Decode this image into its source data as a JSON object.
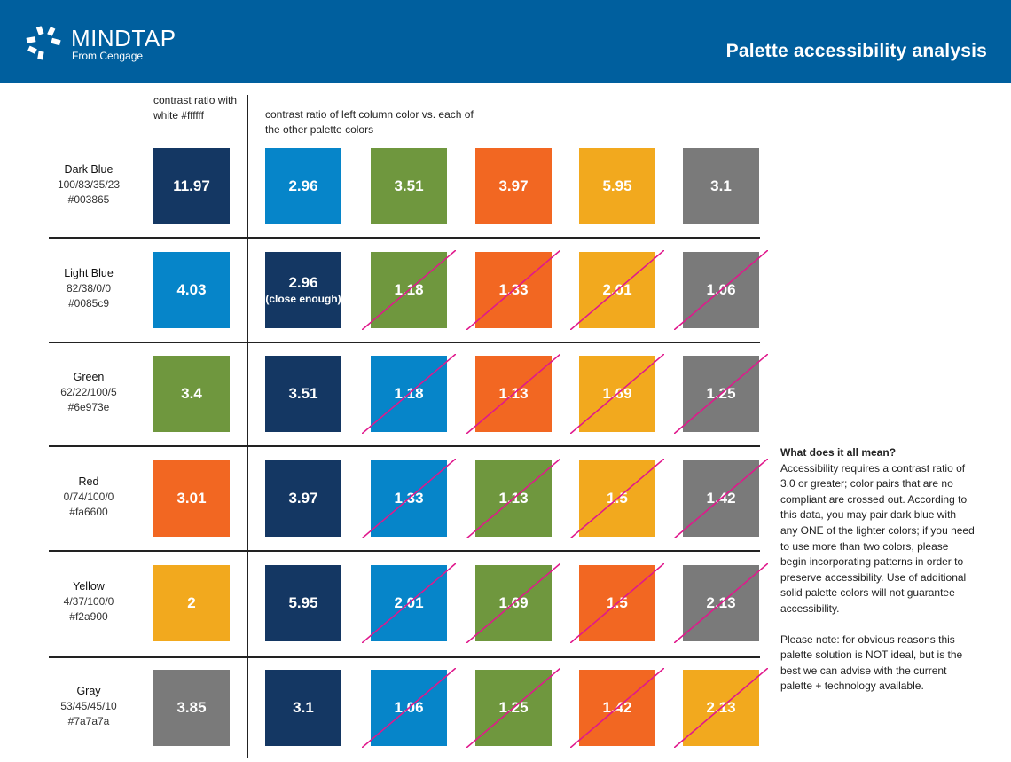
{
  "header": {
    "brand": "MINDTAP",
    "brand_sub": "From Cengage",
    "title": "Palette accessibility analysis",
    "color": "#005f9e"
  },
  "columns": {
    "white_head": "contrast ratio with white #ffffff",
    "others_head": "contrast ratio of left column color vs. each of the other palette colors"
  },
  "colors": {
    "dark_blue": "#143763",
    "light_blue": "#0685c9",
    "green": "#6f973e",
    "red": "#f26722",
    "yellow": "#f2a91e",
    "gray": "#7a7a7a",
    "cross": "#e0188c"
  },
  "rows": [
    {
      "name": "Dark Blue",
      "cmyk": "100/83/35/23",
      "hex": "#003865",
      "white": {
        "value": "11.97",
        "color": "dark_blue"
      },
      "cells": [
        {
          "value": "2.96",
          "color": "light_blue",
          "crossed": false
        },
        {
          "value": "3.51",
          "color": "green",
          "crossed": false
        },
        {
          "value": "3.97",
          "color": "red",
          "crossed": false
        },
        {
          "value": "5.95",
          "color": "yellow",
          "crossed": false
        },
        {
          "value": "3.1",
          "color": "gray",
          "crossed": false
        }
      ]
    },
    {
      "name": "Light Blue",
      "cmyk": "82/38/0/0",
      "hex": "#0085c9",
      "white": {
        "value": "4.03",
        "color": "light_blue"
      },
      "cells": [
        {
          "value": "2.96",
          "note": "(close enough)",
          "color": "dark_blue",
          "crossed": false
        },
        {
          "value": "1.18",
          "color": "green",
          "crossed": true
        },
        {
          "value": "1.33",
          "color": "red",
          "crossed": true
        },
        {
          "value": "2.01",
          "color": "yellow",
          "crossed": true
        },
        {
          "value": "1.06",
          "color": "gray",
          "crossed": true
        }
      ]
    },
    {
      "name": "Green",
      "cmyk": "62/22/100/5",
      "hex": "#6e973e",
      "white": {
        "value": "3.4",
        "color": "green"
      },
      "cells": [
        {
          "value": "3.51",
          "color": "dark_blue",
          "crossed": false
        },
        {
          "value": "1.18",
          "color": "light_blue",
          "crossed": true
        },
        {
          "value": "1.13",
          "color": "red",
          "crossed": true
        },
        {
          "value": "1.69",
          "color": "yellow",
          "crossed": true
        },
        {
          "value": "1.25",
          "color": "gray",
          "crossed": true
        }
      ]
    },
    {
      "name": "Red",
      "cmyk": "0/74/100/0",
      "hex": "#fa6600",
      "white": {
        "value": "3.01",
        "color": "red"
      },
      "cells": [
        {
          "value": "3.97",
          "color": "dark_blue",
          "crossed": false
        },
        {
          "value": "1.33",
          "color": "light_blue",
          "crossed": true
        },
        {
          "value": "1.13",
          "color": "green",
          "crossed": true
        },
        {
          "value": "1.5",
          "color": "yellow",
          "crossed": true
        },
        {
          "value": "1.42",
          "color": "gray",
          "crossed": true
        }
      ]
    },
    {
      "name": "Yellow",
      "cmyk": "4/37/100/0",
      "hex": "#f2a900",
      "white": {
        "value": "2",
        "color": "yellow"
      },
      "cells": [
        {
          "value": "5.95",
          "color": "dark_blue",
          "crossed": false
        },
        {
          "value": "2.01",
          "color": "light_blue",
          "crossed": true
        },
        {
          "value": "1.69",
          "color": "green",
          "crossed": true
        },
        {
          "value": "1.5",
          "color": "red",
          "crossed": true
        },
        {
          "value": "2.13",
          "color": "gray",
          "crossed": true
        }
      ]
    },
    {
      "name": "Gray",
      "cmyk": "53/45/45/10",
      "hex": "#7a7a7a",
      "white": {
        "value": "3.85",
        "color": "gray"
      },
      "cells": [
        {
          "value": "3.1",
          "color": "dark_blue",
          "crossed": false
        },
        {
          "value": "1.06",
          "color": "light_blue",
          "crossed": true
        },
        {
          "value": "1.25",
          "color": "green",
          "crossed": true
        },
        {
          "value": "1.42",
          "color": "red",
          "crossed": true
        },
        {
          "value": "2.13",
          "color": "yellow",
          "crossed": true
        }
      ]
    }
  ],
  "explanation": {
    "title": "What does it all mean?",
    "body": "Accessibility requires a contrast ratio of 3.0 or greater; color pairs that are no compliant are crossed out. According to this data, you may pair dark blue with any ONE of the lighter colors; if you need to use more than two colors, please begin incorporating patterns in order to preserve accessibility. Use of additional solid palette colors will not guarantee accessibility.",
    "note": "Please note: for obvious reasons this palette solution is NOT ideal, but is the best we can advise with the current palette + technology available."
  }
}
